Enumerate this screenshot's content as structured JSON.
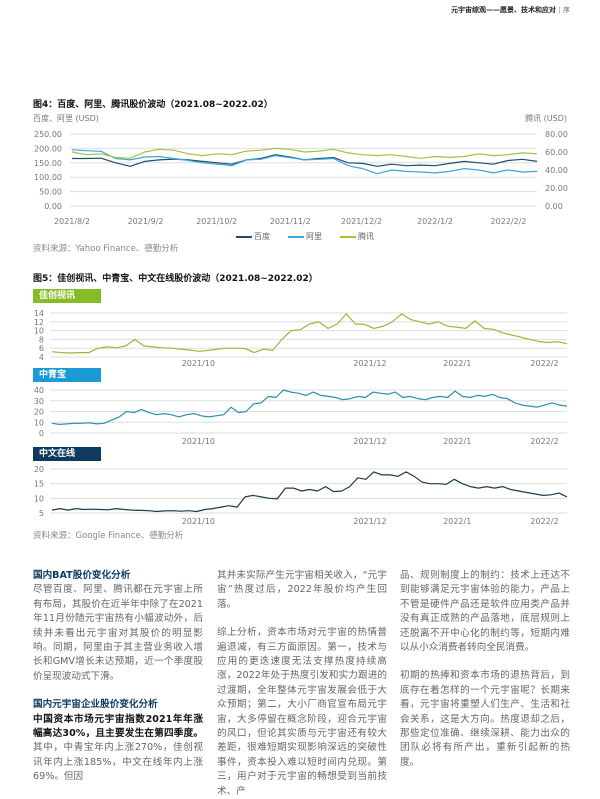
{
  "header": {
    "title": "元宇宙综观——愿景、技术和应对",
    "section": "序"
  },
  "colors": {
    "baidu": "#1f4e6e",
    "ali": "#3aa8d8",
    "tencent": "#a5c13a",
    "jiachuang": "#86bc25",
    "zhongqingbao": "#1a9ad6",
    "zhongwen": "#0f3a5f"
  },
  "fig4": {
    "title": "图4：百度、阿里、腾讯股价波动（2021.08~2022.02）",
    "left_unit": "百度、阿里 (USD)",
    "right_unit": "腾讯 (USD)",
    "source": "资料来源：Yahoo Finance、德勤分析"
  },
  "fig5": {
    "title": "图5：佳创视讯、中青宝、中文在线股价波动（2021.08~2022.02）",
    "source": "资料来源：Google Finance、德勤分析"
  },
  "chart_data": [
    {
      "type": "line",
      "title": "图4：百度、阿里、腾讯股价波动（2021.08~2022.02）",
      "x_start": "2021-08-02",
      "x_end": "2022-02-14",
      "x_ticks": [
        {
          "date": "2021-08-02",
          "label": "2021/8/2"
        },
        {
          "date": "2021-09-02",
          "label": "2021/9/2"
        },
        {
          "date": "2021-10-02",
          "label": "2021/10/2"
        },
        {
          "date": "2021-11-02",
          "label": "2021/11/2"
        },
        {
          "date": "2021-12-02",
          "label": "2021/12/2"
        },
        {
          "date": "2022-01-02",
          "label": "2022/1/2"
        },
        {
          "date": "2022-02-02",
          "label": "2022/2/2"
        }
      ],
      "y_left": {
        "label": "百度、阿里 (USD)",
        "range": [
          0,
          250
        ],
        "ticks": [
          "0.00",
          "50.00",
          "100.00",
          "150.00",
          "200.00",
          "250.00"
        ]
      },
      "y_right": {
        "label": "腾讯 (USD)",
        "range": [
          0,
          80
        ],
        "ticks": [
          "0.00",
          "20.00",
          "40.00",
          "60.00",
          "80.00"
        ]
      },
      "grid": true,
      "legend": "bottom",
      "series": [
        {
          "name": "百度",
          "axis": "left",
          "values": [
            165,
            165,
            166,
            150,
            138,
            155,
            160,
            163,
            160,
            155,
            150,
            145,
            160,
            165,
            178,
            170,
            160,
            165,
            168,
            150,
            148,
            138,
            145,
            140,
            142,
            140,
            148,
            155,
            150,
            145,
            158,
            162,
            155
          ]
        },
        {
          "name": "阿里",
          "axis": "left",
          "values": [
            195,
            192,
            190,
            165,
            160,
            170,
            172,
            165,
            158,
            150,
            145,
            140,
            160,
            162,
            175,
            168,
            160,
            162,
            165,
            140,
            130,
            112,
            125,
            120,
            118,
            115,
            120,
            130,
            125,
            115,
            125,
            118,
            120
          ]
        },
        {
          "name": "腾讯",
          "axis": "right",
          "values": [
            60,
            57,
            58,
            54,
            53,
            60,
            63,
            62,
            58,
            56,
            58,
            57,
            61,
            62,
            64,
            63,
            60,
            61,
            63,
            59,
            57,
            56,
            57,
            55,
            53,
            55,
            54,
            55,
            58,
            56,
            57,
            59,
            58
          ]
        }
      ]
    },
    {
      "type": "line",
      "title": "佳创视讯",
      "x_start": "2021-08-10",
      "x_end": "2022-02-09",
      "x_ticks": [
        {
          "date": "2021-10-01",
          "label": "2021/10"
        },
        {
          "date": "2021-12-01",
          "label": "2021/12"
        },
        {
          "date": "2022-01-01",
          "label": "2022/1"
        },
        {
          "date": "2022-02-01",
          "label": "2022/2"
        }
      ],
      "y": {
        "range": [
          4,
          14
        ],
        "ticks": [
          "4",
          "6",
          "8",
          "10",
          "12",
          "14"
        ]
      },
      "grid": true,
      "series": [
        {
          "name": "佳创视讯",
          "values": [
            5.2,
            5,
            4.9,
            5,
            5,
            6,
            6.3,
            6.1,
            6.5,
            8,
            6.5,
            6.3,
            6.1,
            6,
            5.8,
            5.6,
            5.3,
            5.5,
            5.8,
            6,
            6,
            5.9,
            5,
            5.8,
            5.5,
            8,
            10,
            10.2,
            11.5,
            12,
            10.5,
            11.5,
            13.8,
            11.5,
            11.4,
            10.5,
            11,
            12,
            13.8,
            12.5,
            12,
            11.5,
            12,
            11,
            10.8,
            10.5,
            12.2,
            10.5,
            10.3,
            9.5,
            9,
            8.5,
            8,
            7.5,
            7.3,
            7.5,
            7
          ]
        }
      ]
    },
    {
      "type": "line",
      "title": "中青宝",
      "x_start": "2021-08-10",
      "x_end": "2022-02-09",
      "x_ticks": [
        {
          "date": "2021-10-01",
          "label": "2021/10"
        },
        {
          "date": "2021-12-01",
          "label": "2021/12"
        },
        {
          "date": "2022-01-01",
          "label": "2022/1"
        },
        {
          "date": "2022-02-01",
          "label": "2022/2"
        }
      ],
      "y": {
        "range": [
          0,
          40
        ],
        "ticks": [
          "0",
          "10",
          "20",
          "30",
          "40"
        ]
      },
      "grid": true,
      "series": [
        {
          "name": "中青宝",
          "values": [
            9,
            8,
            8.5,
            9,
            9,
            9.5,
            8.5,
            9,
            12,
            15,
            20,
            19,
            22,
            19,
            17,
            18,
            17,
            15,
            17,
            18,
            16,
            15,
            16,
            17,
            24,
            19,
            20,
            27,
            28,
            34,
            33,
            40,
            38,
            37,
            35,
            38,
            35,
            34,
            33,
            31,
            32,
            34,
            33,
            38,
            37,
            36,
            38,
            33,
            34,
            32,
            31,
            33,
            34,
            33,
            39,
            34,
            33,
            35,
            34,
            36,
            33,
            32,
            28,
            26,
            25,
            24,
            26,
            28,
            26,
            25
          ]
        }
      ]
    },
    {
      "type": "line",
      "title": "中文在线",
      "x_start": "2021-08-10",
      "x_end": "2022-02-09",
      "x_ticks": [
        {
          "date": "2021-10-01",
          "label": "2021/10"
        },
        {
          "date": "2021-12-01",
          "label": "2021/12"
        },
        {
          "date": "2022-01-01",
          "label": "2022/1"
        },
        {
          "date": "2022-02-01",
          "label": "2022/2"
        }
      ],
      "y": {
        "range": [
          5,
          20
        ],
        "ticks": [
          "5",
          "10",
          "15",
          "20"
        ]
      },
      "grid": true,
      "series": [
        {
          "name": "中文在线",
          "values": [
            6,
            6.5,
            6,
            6.5,
            6.2,
            6.3,
            6.2,
            6.1,
            6.5,
            6.2,
            6,
            5.9,
            5.8,
            5.5,
            5.7,
            5.8,
            5.6,
            5.8,
            5.5,
            6.2,
            6.5,
            7,
            7.5,
            7,
            10.5,
            11,
            10.5,
            10,
            9.8,
            13.5,
            13.5,
            12.5,
            13,
            12.5,
            14,
            12.3,
            12.5,
            14,
            17,
            16.5,
            19,
            18,
            18,
            17.5,
            19,
            17.5,
            15.5,
            15,
            15,
            14.8,
            16.5,
            15,
            14,
            13.5,
            14,
            13.5,
            14,
            13,
            12.5,
            12,
            11.5,
            11,
            11.2,
            11.8,
            10.5
          ]
        }
      ]
    }
  ],
  "body": {
    "col1": {
      "h1": "国内BAT股价变化分析",
      "p1": "尽管百度、阿里、腾讯都在元宇宙上所有布局，其股价在近半年中除了在2021年11月份随元宇宙热有小幅波动外，后续并未看出元宇宙对其股价的明显影响。同期，阿里由于其主营业务收入增长和GMV增长未达预期，近一个季度股价呈现波动式下滑。",
      "h2": "国内元宇宙企业股价变化分析",
      "lead": "中国资本市场元宇宙指数2021年年涨幅高达30%，且主要发生在第四季度。",
      "p2": "其中，中青宝年内上涨270%，佳创视讯年内上涨185%，中文在线年内上涨69%。但因"
    },
    "col2": {
      "p1": "其并未实际产生元宇宙相关收入，“元宇宙”热度过后，2022年股价均产生回落。",
      "p2": "综上分析，资本市场对元宇宙的热情普遍退减，有三方面原因。第一，技术与应用的更迭速度无法支撑热度持续高涨，2022年处于热度引发和实力跟进的过渡期，全年整体元宇宙发展会低于大众预期；第二，大小厂商官宣布局元宇宙，大多停留在概念阶段，迎合元宇宙的风口，但论其实质与元宇宙还有较大差距，很难短期实现影响深远的突破性事件，资本投入难以短时间内兑现。第三，用户对于元宇宙的畅想受到当前技术、产"
    },
    "col3": {
      "p1": "品、规则制度上的制约：技术上还达不到能够满足元宇宙体验的能力，产品上不管是硬件产品还是软件应用类产品并没有真正成熟的产品落地，底层规则上还脱离不开中心化的制约等，短期内难以从小众消费者转向全民消费。",
      "p2": "初期的热捧和资本市场的退热背后，到底存在着怎样的一个元宇宙呢？长期来看，元宇宙将重塑人们生产、生活和社会关系，这是大方向。热度退却之后，那些定位准确、继续深耕、能力出众的团队必将有所产出，重新引起新的热度。"
    }
  }
}
